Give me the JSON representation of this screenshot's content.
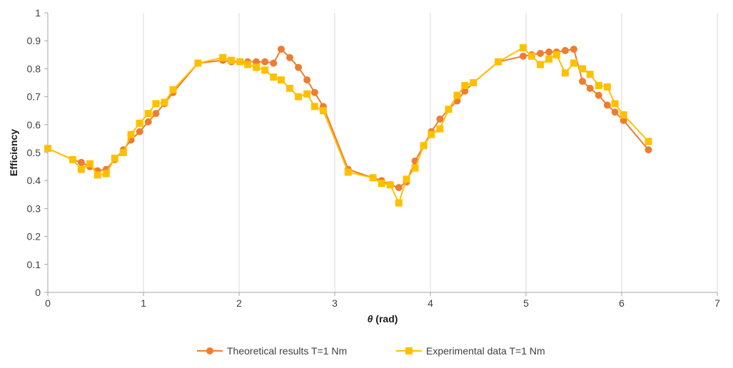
{
  "chart_data": {
    "type": "line",
    "title": "",
    "xlabel_symbol": "θ",
    "xlabel_unit": " (rad)",
    "ylabel": "Efficiency",
    "xlim": [
      0,
      7
    ],
    "ylim": [
      0,
      1
    ],
    "x_ticks": [
      0,
      1,
      2,
      3,
      4,
      5,
      6,
      7
    ],
    "y_ticks": [
      0,
      0.1,
      0.2,
      0.3,
      0.4,
      0.5,
      0.6,
      0.7,
      0.8,
      0.9,
      1
    ],
    "y_tick_labels": [
      "0",
      "0.1",
      "0.2",
      "0.3",
      "0.4",
      "0.5",
      "0.6",
      "0.7",
      "0.8",
      "0.9",
      "1"
    ],
    "grid": "vertical",
    "legend_position": "bottom",
    "series": [
      {
        "name": "Theoretical results T=1 Nm",
        "color": "#ed7d31",
        "marker": "circle",
        "x": [
          0,
          0.26,
          0.35,
          0.44,
          0.52,
          0.61,
          0.7,
          0.79,
          0.87,
          0.96,
          1.05,
          1.13,
          1.22,
          1.31,
          1.57,
          1.83,
          1.92,
          2.01,
          2.09,
          2.18,
          2.27,
          2.36,
          2.44,
          2.53,
          2.62,
          2.71,
          2.79,
          2.88,
          3.14,
          3.4,
          3.49,
          3.58,
          3.67,
          3.75,
          3.84,
          3.93,
          4.01,
          4.1,
          4.19,
          4.28,
          4.36,
          4.45,
          4.71,
          4.97,
          5.06,
          5.15,
          5.24,
          5.32,
          5.41,
          5.5,
          5.59,
          5.67,
          5.76,
          5.85,
          5.93,
          6.02,
          6.28
        ],
        "values": [
          0.515,
          0.475,
          0.465,
          0.45,
          0.435,
          0.44,
          0.475,
          0.51,
          0.545,
          0.575,
          0.61,
          0.64,
          0.675,
          0.715,
          0.82,
          0.83,
          0.825,
          0.825,
          0.825,
          0.825,
          0.825,
          0.82,
          0.87,
          0.84,
          0.805,
          0.76,
          0.715,
          0.665,
          0.44,
          0.41,
          0.4,
          0.385,
          0.375,
          0.395,
          0.47,
          0.525,
          0.575,
          0.62,
          0.655,
          0.685,
          0.72,
          0.75,
          0.825,
          0.845,
          0.85,
          0.855,
          0.86,
          0.86,
          0.865,
          0.87,
          0.755,
          0.73,
          0.705,
          0.67,
          0.645,
          0.615,
          0.51
        ]
      },
      {
        "name": "Experimental data T=1 Nm",
        "color": "#ffc000",
        "marker": "square",
        "x": [
          0,
          0.26,
          0.35,
          0.44,
          0.52,
          0.61,
          0.7,
          0.79,
          0.87,
          0.96,
          1.05,
          1.13,
          1.22,
          1.31,
          1.57,
          1.83,
          1.92,
          2.01,
          2.09,
          2.18,
          2.27,
          2.36,
          2.44,
          2.53,
          2.62,
          2.71,
          2.79,
          2.88,
          3.14,
          3.4,
          3.49,
          3.58,
          3.67,
          3.75,
          3.84,
          3.93,
          4.01,
          4.1,
          4.19,
          4.28,
          4.36,
          4.45,
          4.71,
          4.97,
          5.06,
          5.15,
          5.24,
          5.32,
          5.41,
          5.5,
          5.59,
          5.67,
          5.76,
          5.85,
          5.93,
          6.02,
          6.28
        ],
        "values": [
          0.515,
          0.475,
          0.44,
          0.46,
          0.42,
          0.425,
          0.48,
          0.5,
          0.565,
          0.605,
          0.64,
          0.675,
          0.68,
          0.725,
          0.82,
          0.84,
          0.83,
          0.825,
          0.815,
          0.805,
          0.795,
          0.77,
          0.76,
          0.73,
          0.7,
          0.71,
          0.665,
          0.65,
          0.43,
          0.41,
          0.39,
          0.385,
          0.32,
          0.405,
          0.445,
          0.525,
          0.565,
          0.585,
          0.655,
          0.705,
          0.74,
          0.75,
          0.825,
          0.875,
          0.845,
          0.815,
          0.835,
          0.85,
          0.785,
          0.82,
          0.8,
          0.78,
          0.74,
          0.735,
          0.675,
          0.635,
          0.54
        ]
      }
    ]
  }
}
